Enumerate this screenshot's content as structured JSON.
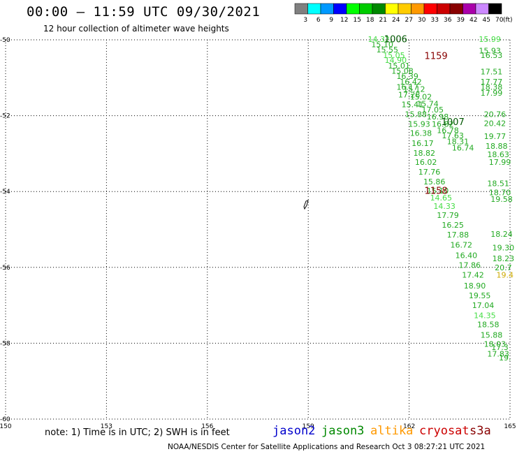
{
  "header": {
    "title": "00:00 – 11:59 UTC 09/30/2021",
    "subtitle": "12 hour collection of altimeter wave heights"
  },
  "footer": {
    "note": "note: 1) Time is in UTC; 2) SWH is in feet",
    "credit": "NOAA/NESDIS Center for Satellite Applications and Research   Oct  3 08:27:21 UTC 2021"
  },
  "satellites": [
    {
      "name": "jason2",
      "color": "#0000cc"
    },
    {
      "name": "jason3",
      "color": "#008800"
    },
    {
      "name": "altika",
      "color": "#ff9900"
    },
    {
      "name": "cryosat",
      "color": "#cc0000"
    },
    {
      "name": "s3a",
      "color": "#880000"
    }
  ],
  "colorbar": {
    "unit": "(ft)",
    "labels": [
      "3",
      "6",
      "9",
      "12",
      "15",
      "18",
      "21",
      "24",
      "27",
      "30",
      "33",
      "36",
      "39",
      "42",
      "45",
      "70"
    ],
    "colors": [
      "#808080",
      "#00ffff",
      "#0099ff",
      "#0000ff",
      "#00ff00",
      "#00cc00",
      "#008800",
      "#ffff00",
      "#ffcc00",
      "#ff9900",
      "#ff0000",
      "#cc0000",
      "#880000",
      "#aa00aa",
      "#cc88ff",
      "#000000"
    ]
  },
  "chart_data": {
    "type": "scatter",
    "xlim": [
      150,
      165
    ],
    "ylim": [
      -60,
      -50
    ],
    "xticks": [
      "150",
      "153",
      "156",
      "159",
      "162",
      "165"
    ],
    "yticks": [
      "-50",
      "-52",
      "-54",
      "-56",
      "-58",
      "-60"
    ],
    "xtick_values": [
      150,
      153,
      156,
      159,
      162,
      165
    ],
    "ytick_values": [
      -50,
      -52,
      -54,
      -56,
      -58,
      -60
    ],
    "grid": true,
    "annotations": [
      {
        "text": "1006",
        "lon": 161.6,
        "lat": -50.0,
        "color": "#005500"
      },
      {
        "text": "1159",
        "lon": 162.8,
        "lat": -50.44,
        "color": "#880000"
      },
      {
        "text": "1007",
        "lon": 163.3,
        "lat": -52.18,
        "color": "#005500"
      },
      {
        "text": "1158",
        "lon": 162.8,
        "lat": -54.0,
        "color": "#880000"
      }
    ],
    "points": [
      {
        "v": "14.32",
        "lon": 161.1,
        "lat": -50.0,
        "c": "#44dd44"
      },
      {
        "v": "15.10",
        "lon": 161.2,
        "lat": -50.14,
        "c": "#22aa22"
      },
      {
        "v": "15.55",
        "lon": 161.35,
        "lat": -50.28,
        "c": "#22aa22"
      },
      {
        "v": "15.05",
        "lon": 161.55,
        "lat": -50.42,
        "c": "#44dd44"
      },
      {
        "v": "14.90",
        "lon": 161.6,
        "lat": -50.55,
        "c": "#44dd44"
      },
      {
        "v": "15.01",
        "lon": 161.7,
        "lat": -50.7,
        "c": "#22aa22"
      },
      {
        "v": "15.08",
        "lon": 161.8,
        "lat": -50.84,
        "c": "#22aa22"
      },
      {
        "v": "16.39",
        "lon": 161.95,
        "lat": -50.98,
        "c": "#22aa22"
      },
      {
        "v": "16.42",
        "lon": 162.05,
        "lat": -51.12,
        "c": "#22aa22"
      },
      {
        "v": "16.17",
        "lon": 161.95,
        "lat": -51.26,
        "c": "#22aa22"
      },
      {
        "v": "15.12",
        "lon": 162.15,
        "lat": -51.32,
        "c": "#22aa22"
      },
      {
        "v": "17.28",
        "lon": 162.0,
        "lat": -51.46,
        "c": "#22aa22"
      },
      {
        "v": "15.02",
        "lon": 162.35,
        "lat": -51.52,
        "c": "#22aa22"
      },
      {
        "v": "15.74",
        "lon": 162.55,
        "lat": -51.7,
        "c": "#22aa22"
      },
      {
        "v": "15.41",
        "lon": 162.1,
        "lat": -51.72,
        "c": "#22aa22"
      },
      {
        "v": "17.05",
        "lon": 162.7,
        "lat": -51.86,
        "c": "#22aa22"
      },
      {
        "v": "15.88",
        "lon": 162.2,
        "lat": -51.98,
        "c": "#22aa22"
      },
      {
        "v": "16.98",
        "lon": 162.85,
        "lat": -52.04,
        "c": "#22aa22"
      },
      {
        "v": "15.93",
        "lon": 162.3,
        "lat": -52.24,
        "c": "#22aa22"
      },
      {
        "v": "16.82",
        "lon": 163.0,
        "lat": -52.24,
        "c": "#22aa22"
      },
      {
        "v": "16.78",
        "lon": 163.15,
        "lat": -52.4,
        "c": "#22aa22"
      },
      {
        "v": "16.38",
        "lon": 162.35,
        "lat": -52.48,
        "c": "#22aa22"
      },
      {
        "v": "17.63",
        "lon": 163.3,
        "lat": -52.54,
        "c": "#22aa22"
      },
      {
        "v": "16.17",
        "lon": 162.4,
        "lat": -52.74,
        "c": "#22aa22"
      },
      {
        "v": "18.31",
        "lon": 163.45,
        "lat": -52.7,
        "c": "#22aa22"
      },
      {
        "v": "16.74",
        "lon": 163.6,
        "lat": -52.86,
        "c": "#22aa22"
      },
      {
        "v": "18.82",
        "lon": 162.45,
        "lat": -53.0,
        "c": "#22aa22"
      },
      {
        "v": "16.02",
        "lon": 162.5,
        "lat": -53.24,
        "c": "#22aa22"
      },
      {
        "v": "17.76",
        "lon": 162.6,
        "lat": -53.5,
        "c": "#22aa22"
      },
      {
        "v": "15.86",
        "lon": 162.75,
        "lat": -53.76,
        "c": "#22aa22"
      },
      {
        "v": "15.10",
        "lon": 162.85,
        "lat": -54.0,
        "c": "#22aa22"
      },
      {
        "v": "14.65",
        "lon": 162.95,
        "lat": -54.18,
        "c": "#44dd44"
      },
      {
        "v": "14.33",
        "lon": 163.05,
        "lat": -54.4,
        "c": "#44dd44"
      },
      {
        "v": "17.79",
        "lon": 163.15,
        "lat": -54.64,
        "c": "#22aa22"
      },
      {
        "v": "16.25",
        "lon": 163.3,
        "lat": -54.9,
        "c": "#22aa22"
      },
      {
        "v": "17.88",
        "lon": 163.45,
        "lat": -55.16,
        "c": "#22aa22"
      },
      {
        "v": "16.72",
        "lon": 163.55,
        "lat": -55.42,
        "c": "#22aa22"
      },
      {
        "v": "16.40",
        "lon": 163.7,
        "lat": -55.7,
        "c": "#22aa22"
      },
      {
        "v": "17.86",
        "lon": 163.8,
        "lat": -55.96,
        "c": "#22aa22"
      },
      {
        "v": "17.42",
        "lon": 163.9,
        "lat": -56.22,
        "c": "#22aa22"
      },
      {
        "v": "18.90",
        "lon": 163.95,
        "lat": -56.5,
        "c": "#22aa22"
      },
      {
        "v": "19.55",
        "lon": 164.1,
        "lat": -56.76,
        "c": "#22aa22"
      },
      {
        "v": "17.04",
        "lon": 164.2,
        "lat": -57.02,
        "c": "#22aa22"
      },
      {
        "v": "14.35",
        "lon": 164.25,
        "lat": -57.28,
        "c": "#44dd44"
      },
      {
        "v": "18.58",
        "lon": 164.35,
        "lat": -57.52,
        "c": "#22aa22"
      },
      {
        "v": "15.88",
        "lon": 164.45,
        "lat": -57.8,
        "c": "#22aa22"
      },
      {
        "v": "18.03",
        "lon": 164.55,
        "lat": -58.04,
        "c": "#22aa22"
      },
      {
        "v": "17.83",
        "lon": 164.65,
        "lat": -58.3,
        "c": "#22aa22"
      },
      {
        "v": "15.99",
        "lon": 164.4,
        "lat": -50.0,
        "c": "#44dd44"
      },
      {
        "v": "15.93",
        "lon": 164.4,
        "lat": -50.3,
        "c": "#22aa22"
      },
      {
        "v": "16.53",
        "lon": 164.45,
        "lat": -50.42,
        "c": "#22aa22"
      },
      {
        "v": "17.51",
        "lon": 164.45,
        "lat": -50.86,
        "c": "#22aa22"
      },
      {
        "v": "17.77",
        "lon": 164.45,
        "lat": -51.12,
        "c": "#22aa22"
      },
      {
        "v": "18.38",
        "lon": 164.45,
        "lat": -51.26,
        "c": "#22aa22"
      },
      {
        "v": "17.99",
        "lon": 164.45,
        "lat": -51.42,
        "c": "#22aa22"
      },
      {
        "v": "20.76",
        "lon": 164.55,
        "lat": -51.98,
        "c": "#22aa22"
      },
      {
        "v": "20.42",
        "lon": 164.55,
        "lat": -52.22,
        "c": "#22aa22"
      },
      {
        "v": "19.77",
        "lon": 164.55,
        "lat": -52.56,
        "c": "#22aa22"
      },
      {
        "v": "18.88",
        "lon": 164.6,
        "lat": -52.82,
        "c": "#22aa22"
      },
      {
        "v": "18.63",
        "lon": 164.65,
        "lat": -53.04,
        "c": "#22aa22"
      },
      {
        "v": "17.99",
        "lon": 164.7,
        "lat": -53.24,
        "c": "#22aa22"
      },
      {
        "v": "18.51",
        "lon": 164.65,
        "lat": -53.8,
        "c": "#22aa22"
      },
      {
        "v": "18.70",
        "lon": 164.7,
        "lat": -54.04,
        "c": "#22aa22"
      },
      {
        "v": "19.58",
        "lon": 164.75,
        "lat": -54.22,
        "c": "#22aa22"
      },
      {
        "v": "18.24",
        "lon": 164.75,
        "lat": -55.14,
        "c": "#22aa22"
      },
      {
        "v": "19.30",
        "lon": 164.8,
        "lat": -55.5,
        "c": "#22aa22"
      },
      {
        "v": "18.23",
        "lon": 164.8,
        "lat": -55.78,
        "c": "#22aa22"
      },
      {
        "v": "20.7",
        "lon": 164.8,
        "lat": -56.02,
        "c": "#22aa22"
      },
      {
        "v": "19.4",
        "lon": 164.85,
        "lat": -56.22,
        "c": "#ccaa00"
      },
      {
        "v": "17.3",
        "lon": 164.7,
        "lat": -58.12,
        "c": "#22aa22"
      },
      {
        "v": "19.",
        "lon": 164.85,
        "lat": -58.4,
        "c": "#22aa22"
      }
    ]
  }
}
